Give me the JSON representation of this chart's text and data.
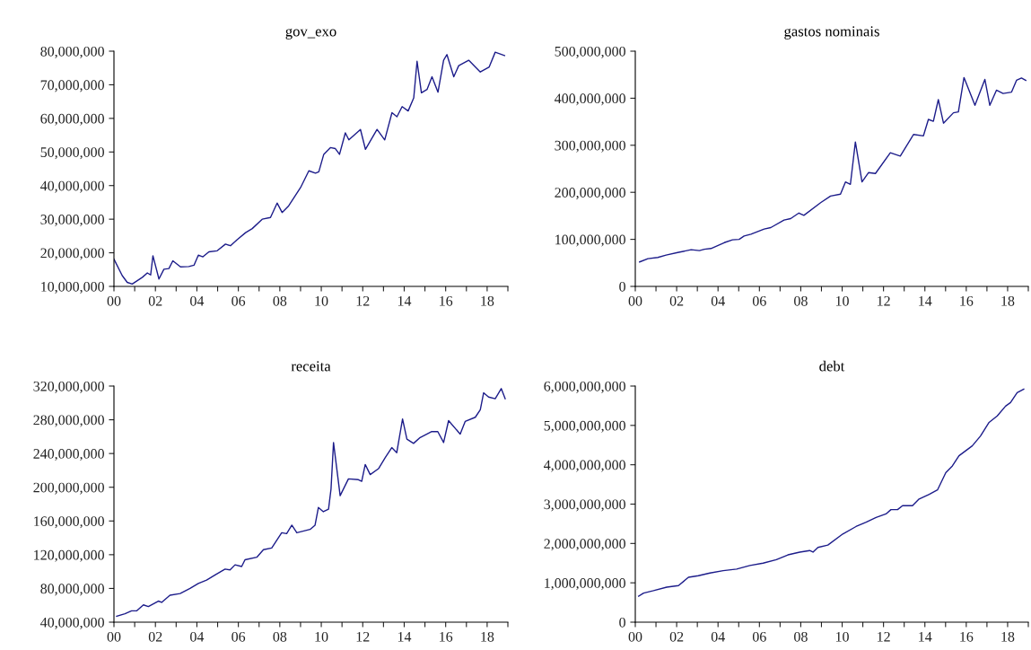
{
  "chart_data": [
    {
      "type": "line",
      "title": "gov_exo",
      "color": "#1c1c8a",
      "x": [
        2000.0,
        2000.4,
        2000.64,
        2000.88,
        2001.37,
        2001.61,
        2001.77,
        2001.88,
        2002.17,
        2002.41,
        2002.65,
        2002.84,
        2003.21,
        2003.61,
        2003.86,
        2004.07,
        2004.29,
        2004.58,
        2004.98,
        2005.38,
        2005.62,
        2005.94,
        2006.35,
        2006.67,
        2007.15,
        2007.55,
        2007.87,
        2008.11,
        2008.43,
        2009.0,
        2009.4,
        2009.72,
        2009.88,
        2010.12,
        2010.44,
        2010.68,
        2010.88,
        2011.16,
        2011.33,
        2011.89,
        2012.13,
        2012.69,
        2013.06,
        2013.41,
        2013.65,
        2013.9,
        2014.19,
        2014.46,
        2014.62,
        2014.83,
        2015.1,
        2015.34,
        2015.63,
        2015.9,
        2016.06,
        2016.39,
        2016.63,
        2017.11,
        2017.67,
        2018.1,
        2018.39,
        2018.84
      ],
      "values": [
        18100000,
        13200000,
        11200000,
        10700000,
        12700000,
        14000000,
        13400000,
        19100000,
        12200000,
        15100000,
        15300000,
        17600000,
        15800000,
        15900000,
        16300000,
        19300000,
        18800000,
        20300000,
        20600000,
        22600000,
        22100000,
        23900000,
        26000000,
        27200000,
        30000000,
        30500000,
        34800000,
        32000000,
        34000000,
        39400000,
        44400000,
        43700000,
        44100000,
        49300000,
        51300000,
        51000000,
        49300000,
        55700000,
        53600000,
        56700000,
        50800000,
        56700000,
        53600000,
        61700000,
        60500000,
        63500000,
        62200000,
        66100000,
        77000000,
        67600000,
        68600000,
        72400000,
        67800000,
        77300000,
        79000000,
        72400000,
        75700000,
        77300000,
        73800000,
        75300000,
        79700000,
        78700000
      ],
      "xlim": [
        2000,
        2019
      ],
      "xticks": [
        {
          "value": 2000,
          "label": "00"
        },
        {
          "value": 2001,
          "label": null
        },
        {
          "value": 2002,
          "label": "02"
        },
        {
          "value": 2003,
          "label": null
        },
        {
          "value": 2004,
          "label": "04"
        },
        {
          "value": 2005,
          "label": null
        },
        {
          "value": 2006,
          "label": "06"
        },
        {
          "value": 2007,
          "label": null
        },
        {
          "value": 2008,
          "label": "08"
        },
        {
          "value": 2009,
          "label": null
        },
        {
          "value": 2010,
          "label": "10"
        },
        {
          "value": 2011,
          "label": null
        },
        {
          "value": 2012,
          "label": "12"
        },
        {
          "value": 2013,
          "label": null
        },
        {
          "value": 2014,
          "label": "14"
        },
        {
          "value": 2015,
          "label": null
        },
        {
          "value": 2016,
          "label": "16"
        },
        {
          "value": 2017,
          "label": null
        },
        {
          "value": 2018,
          "label": "18"
        },
        {
          "value": 2019,
          "label": null
        }
      ],
      "ylim": [
        10000000,
        80000000
      ],
      "yticks": [
        {
          "value": 10000000,
          "label": "10,000,000"
        },
        {
          "value": 20000000,
          "label": "20,000,000"
        },
        {
          "value": 30000000,
          "label": "30,000,000"
        },
        {
          "value": 40000000,
          "label": "40,000,000"
        },
        {
          "value": 50000000,
          "label": "50,000,000"
        },
        {
          "value": 60000000,
          "label": "60,000,000"
        },
        {
          "value": 70000000,
          "label": "70,000,000"
        },
        {
          "value": 80000000,
          "label": "80,000,000"
        }
      ],
      "grid": false,
      "legend": false
    },
    {
      "type": "line",
      "title": "gastos nominais",
      "color": "#1c1c8a",
      "x": [
        2000.21,
        2000.61,
        2001.09,
        2001.49,
        2002.05,
        2002.7,
        2003.1,
        2003.34,
        2003.66,
        2004.3,
        2004.7,
        2005.02,
        2005.26,
        2005.59,
        2006.23,
        2006.55,
        2007.19,
        2007.51,
        2007.91,
        2008.15,
        2008.96,
        2009.44,
        2009.92,
        2010.16,
        2010.4,
        2010.64,
        2010.96,
        2011.28,
        2011.61,
        2012.33,
        2012.81,
        2013.45,
        2013.93,
        2014.17,
        2014.41,
        2014.65,
        2014.9,
        2015.38,
        2015.62,
        2015.89,
        2016.42,
        2016.9,
        2017.14,
        2017.46,
        2017.78,
        2018.19,
        2018.43,
        2018.67,
        2018.88
      ],
      "values": [
        52000000,
        59000000,
        61500000,
        66500000,
        72000000,
        78000000,
        76000000,
        79000000,
        80600000,
        93000000,
        99000000,
        100000000,
        107000000,
        111000000,
        122000000,
        125000000,
        141000000,
        144000000,
        156000000,
        151000000,
        178000000,
        192000000,
        196000000,
        222000000,
        217000000,
        307000000,
        222000000,
        242000000,
        240000000,
        284000000,
        277000000,
        323000000,
        320000000,
        355000000,
        351000000,
        397000000,
        347000000,
        369000000,
        371000000,
        444000000,
        385000000,
        440000000,
        385000000,
        417000000,
        410000000,
        413000000,
        438000000,
        443000000,
        438000000
      ],
      "xlim": [
        2000,
        2019
      ],
      "xticks": [
        {
          "value": 2000,
          "label": "00"
        },
        {
          "value": 2001,
          "label": null
        },
        {
          "value": 2002,
          "label": "02"
        },
        {
          "value": 2003,
          "label": null
        },
        {
          "value": 2004,
          "label": "04"
        },
        {
          "value": 2005,
          "label": null
        },
        {
          "value": 2006,
          "label": "06"
        },
        {
          "value": 2007,
          "label": null
        },
        {
          "value": 2008,
          "label": "08"
        },
        {
          "value": 2009,
          "label": null
        },
        {
          "value": 2010,
          "label": "10"
        },
        {
          "value": 2011,
          "label": null
        },
        {
          "value": 2012,
          "label": "12"
        },
        {
          "value": 2013,
          "label": null
        },
        {
          "value": 2014,
          "label": "14"
        },
        {
          "value": 2015,
          "label": null
        },
        {
          "value": 2016,
          "label": "16"
        },
        {
          "value": 2017,
          "label": null
        },
        {
          "value": 2018,
          "label": "18"
        },
        {
          "value": 2019,
          "label": null
        }
      ],
      "ylim": [
        0,
        500000000
      ],
      "yticks": [
        0,
        {
          "value": 100000000,
          "label": "100,000,000"
        },
        {
          "value": 200000000,
          "label": "200,000,000"
        },
        {
          "value": 300000000,
          "label": "300,000,000"
        },
        {
          "value": 400000000,
          "label": "400,000,000"
        },
        {
          "value": 500000000,
          "label": "500,000,000"
        }
      ],
      "grid": false,
      "legend": false
    },
    {
      "type": "line",
      "title": "receita",
      "color": "#1c1c8a",
      "x": [
        2000.13,
        2000.53,
        2000.85,
        2001.09,
        2001.42,
        2001.66,
        2002.14,
        2002.3,
        2002.7,
        2003.19,
        2003.67,
        2004.07,
        2004.47,
        2004.88,
        2005.36,
        2005.6,
        2005.84,
        2006.16,
        2006.32,
        2006.89,
        2007.21,
        2007.61,
        2008.09,
        2008.33,
        2008.58,
        2008.82,
        2009.46,
        2009.7,
        2009.86,
        2010.1,
        2010.35,
        2010.47,
        2010.59,
        2010.91,
        2011.31,
        2011.79,
        2011.95,
        2012.12,
        2012.36,
        2012.76,
        2013.08,
        2013.4,
        2013.64,
        2013.92,
        2014.13,
        2014.45,
        2014.77,
        2015.33,
        2015.62,
        2015.9,
        2016.14,
        2016.7,
        2016.94,
        2017.43,
        2017.67,
        2017.83,
        2018.07,
        2018.39,
        2018.68,
        2018.87
      ],
      "values": [
        47000000,
        50000000,
        53400000,
        53400000,
        60500000,
        58500000,
        65000000,
        63500000,
        72000000,
        74000000,
        80000000,
        86000000,
        90000000,
        96000000,
        103000000,
        102000000,
        108000000,
        106000000,
        114000000,
        117000000,
        126000000,
        128000000,
        146000000,
        145000000,
        155000000,
        146000000,
        150000000,
        155000000,
        176000000,
        171000000,
        174000000,
        198000000,
        253000000,
        190000000,
        210000000,
        209000000,
        207000000,
        227000000,
        215000000,
        222000000,
        235000000,
        247000000,
        241000000,
        281000000,
        257000000,
        252000000,
        259000000,
        266000000,
        266000000,
        253000000,
        279000000,
        263000000,
        278000000,
        283000000,
        292000000,
        312000000,
        307000000,
        305000000,
        317000000,
        305000000
      ],
      "xlim": [
        2000,
        2019
      ],
      "xticks": [
        {
          "value": 2000,
          "label": "00"
        },
        {
          "value": 2001,
          "label": null
        },
        {
          "value": 2002,
          "label": "02"
        },
        {
          "value": 2003,
          "label": null
        },
        {
          "value": 2004,
          "label": "04"
        },
        {
          "value": 2005,
          "label": null
        },
        {
          "value": 2006,
          "label": "06"
        },
        {
          "value": 2007,
          "label": null
        },
        {
          "value": 2008,
          "label": "08"
        },
        {
          "value": 2009,
          "label": null
        },
        {
          "value": 2010,
          "label": "10"
        },
        {
          "value": 2011,
          "label": null
        },
        {
          "value": 2012,
          "label": "12"
        },
        {
          "value": 2013,
          "label": null
        },
        {
          "value": 2014,
          "label": "14"
        },
        {
          "value": 2015,
          "label": null
        },
        {
          "value": 2016,
          "label": "16"
        },
        {
          "value": 2017,
          "label": null
        },
        {
          "value": 2018,
          "label": "18"
        },
        {
          "value": 2019,
          "label": null
        }
      ],
      "ylim": [
        40000000,
        320000000
      ],
      "yticks": [
        {
          "value": 40000000,
          "label": "40,000,000"
        },
        {
          "value": 80000000,
          "label": "80,000,000"
        },
        {
          "value": 120000000,
          "label": "120,000,000"
        },
        {
          "value": 160000000,
          "label": "160,000,000"
        },
        {
          "value": 200000000,
          "label": "200,000,000"
        },
        {
          "value": 240000000,
          "label": "240,000,000"
        },
        {
          "value": 280000000,
          "label": "280,000,000"
        },
        {
          "value": 320000000,
          "label": "320,000,000"
        }
      ],
      "grid": false,
      "legend": false
    },
    {
      "type": "line",
      "title": "debt",
      "color": "#1c1c8a",
      "x": [
        2000.16,
        2000.4,
        2000.88,
        2001.52,
        2002.09,
        2002.57,
        2003.05,
        2003.61,
        2004.25,
        2004.9,
        2005.54,
        2006.18,
        2006.82,
        2007.38,
        2007.95,
        2008.43,
        2008.59,
        2008.83,
        2009.31,
        2010.03,
        2010.67,
        2011.16,
        2011.64,
        2012.12,
        2012.36,
        2012.68,
        2012.92,
        2013.4,
        2013.72,
        2014.21,
        2014.61,
        2015.01,
        2015.33,
        2015.65,
        2016.29,
        2016.69,
        2017.09,
        2017.5,
        2017.9,
        2018.14,
        2018.46,
        2018.78
      ],
      "values": [
        660000000,
        740000000,
        800000000,
        890000000,
        930000000,
        1140000000,
        1180000000,
        1250000000,
        1310000000,
        1350000000,
        1440000000,
        1500000000,
        1590000000,
        1710000000,
        1780000000,
        1820000000,
        1780000000,
        1900000000,
        1960000000,
        2240000000,
        2430000000,
        2540000000,
        2660000000,
        2750000000,
        2860000000,
        2860000000,
        2960000000,
        2960000000,
        3130000000,
        3250000000,
        3360000000,
        3800000000,
        3970000000,
        4230000000,
        4480000000,
        4730000000,
        5070000000,
        5240000000,
        5490000000,
        5580000000,
        5830000000,
        5920000000
      ],
      "xlim": [
        2000,
        2019
      ],
      "xticks": [
        {
          "value": 2000,
          "label": "00"
        },
        {
          "value": 2001,
          "label": null
        },
        {
          "value": 2002,
          "label": "02"
        },
        {
          "value": 2003,
          "label": null
        },
        {
          "value": 2004,
          "label": "04"
        },
        {
          "value": 2005,
          "label": null
        },
        {
          "value": 2006,
          "label": "06"
        },
        {
          "value": 2007,
          "label": null
        },
        {
          "value": 2008,
          "label": "08"
        },
        {
          "value": 2009,
          "label": null
        },
        {
          "value": 2010,
          "label": "10"
        },
        {
          "value": 2011,
          "label": null
        },
        {
          "value": 2012,
          "label": "12"
        },
        {
          "value": 2013,
          "label": null
        },
        {
          "value": 2014,
          "label": "14"
        },
        {
          "value": 2015,
          "label": null
        },
        {
          "value": 2016,
          "label": "16"
        },
        {
          "value": 2017,
          "label": null
        },
        {
          "value": 2018,
          "label": "18"
        },
        {
          "value": 2019,
          "label": null
        }
      ],
      "ylim": [
        0,
        6000000000
      ],
      "yticks": [
        0,
        {
          "value": 1000000000,
          "label": "1,000,000,000"
        },
        {
          "value": 2000000000,
          "label": "2,000,000,000"
        },
        {
          "value": 3000000000,
          "label": "3,000,000,000"
        },
        {
          "value": 4000000000,
          "label": "4,000,000,000"
        },
        {
          "value": 5000000000,
          "label": "5,000,000,000"
        },
        {
          "value": 6000000000,
          "label": "6,000,000,000"
        }
      ],
      "grid": false,
      "legend": false
    }
  ]
}
